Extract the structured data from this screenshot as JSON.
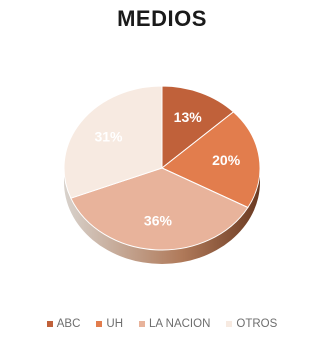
{
  "chart_data": {
    "type": "pie",
    "title": "MEDIOS",
    "categories": [
      "ABC",
      "UH",
      "LA NACION",
      "OTROS"
    ],
    "values": [
      13,
      20,
      36,
      31
    ],
    "data_labels": [
      "13%",
      "20%",
      "36%",
      "31%"
    ],
    "colors": [
      "#c0613a",
      "#e27d4d",
      "#e8b39b",
      "#f7eae1"
    ],
    "legend_position": "bottom"
  }
}
